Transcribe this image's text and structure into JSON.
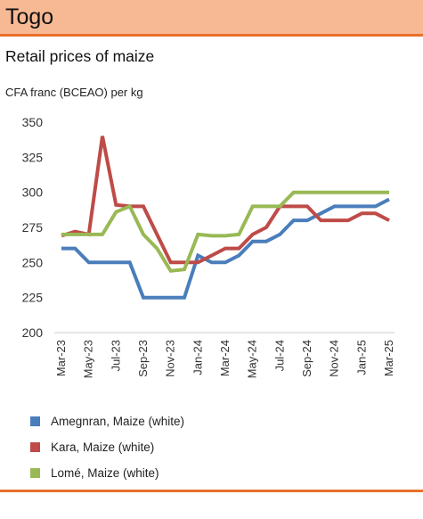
{
  "header": {
    "country": "Togo"
  },
  "colors": {
    "band": "#f7b994",
    "rule": "#e8702a"
  },
  "chart_data": {
    "type": "line",
    "title": "Retail prices of maize",
    "ylabel": "CFA franc (BCEAO) per kg",
    "xlabel": "",
    "ylim": [
      200,
      350
    ],
    "yticks": [
      200,
      225,
      250,
      275,
      300,
      325,
      350
    ],
    "grid": false,
    "legend": "bottom",
    "x": [
      "Mar-23",
      "Apr-23",
      "May-23",
      "Jun-23",
      "Jul-23",
      "Aug-23",
      "Sep-23",
      "Oct-23",
      "Nov-23",
      "Dec-23",
      "Jan-24",
      "Feb-24",
      "Mar-24",
      "Apr-24",
      "May-24",
      "Jun-24",
      "Jul-24",
      "Aug-24",
      "Sep-24",
      "Oct-24",
      "Nov-24",
      "Dec-24",
      "Jan-25",
      "Feb-25",
      "Mar-25"
    ],
    "xtick_labels": [
      "Mar-23",
      "May-23",
      "Jul-23",
      "Sep-23",
      "Nov-23",
      "Jan-24",
      "Mar-24",
      "May-24",
      "Jul-24",
      "Sep-24",
      "Nov-24",
      "Jan-25",
      "Mar-25"
    ],
    "series": [
      {
        "name": "Amegnran, Maize (white)",
        "color": "#4a7ebb",
        "values": [
          260,
          260,
          250,
          250,
          250,
          250,
          225,
          225,
          225,
          225,
          255,
          250,
          250,
          255,
          265,
          265,
          270,
          280,
          280,
          285,
          290,
          290,
          290,
          290,
          295
        ]
      },
      {
        "name": "Kara, Maize (white)",
        "color": "#be4b48",
        "values": [
          269,
          272,
          270,
          340,
          291,
          290,
          290,
          270,
          250,
          250,
          250,
          255,
          260,
          260,
          270,
          275,
          290,
          290,
          290,
          280,
          280,
          280,
          285,
          285,
          280
        ]
      },
      {
        "name": "Lomé, Maize (white)",
        "color": "#98b954",
        "values": [
          270,
          270,
          270,
          270,
          286,
          290,
          270,
          260,
          244,
          245,
          270,
          269,
          269,
          270,
          290,
          290,
          290,
          300,
          300,
          300,
          300,
          300,
          300,
          300,
          300
        ]
      }
    ]
  }
}
